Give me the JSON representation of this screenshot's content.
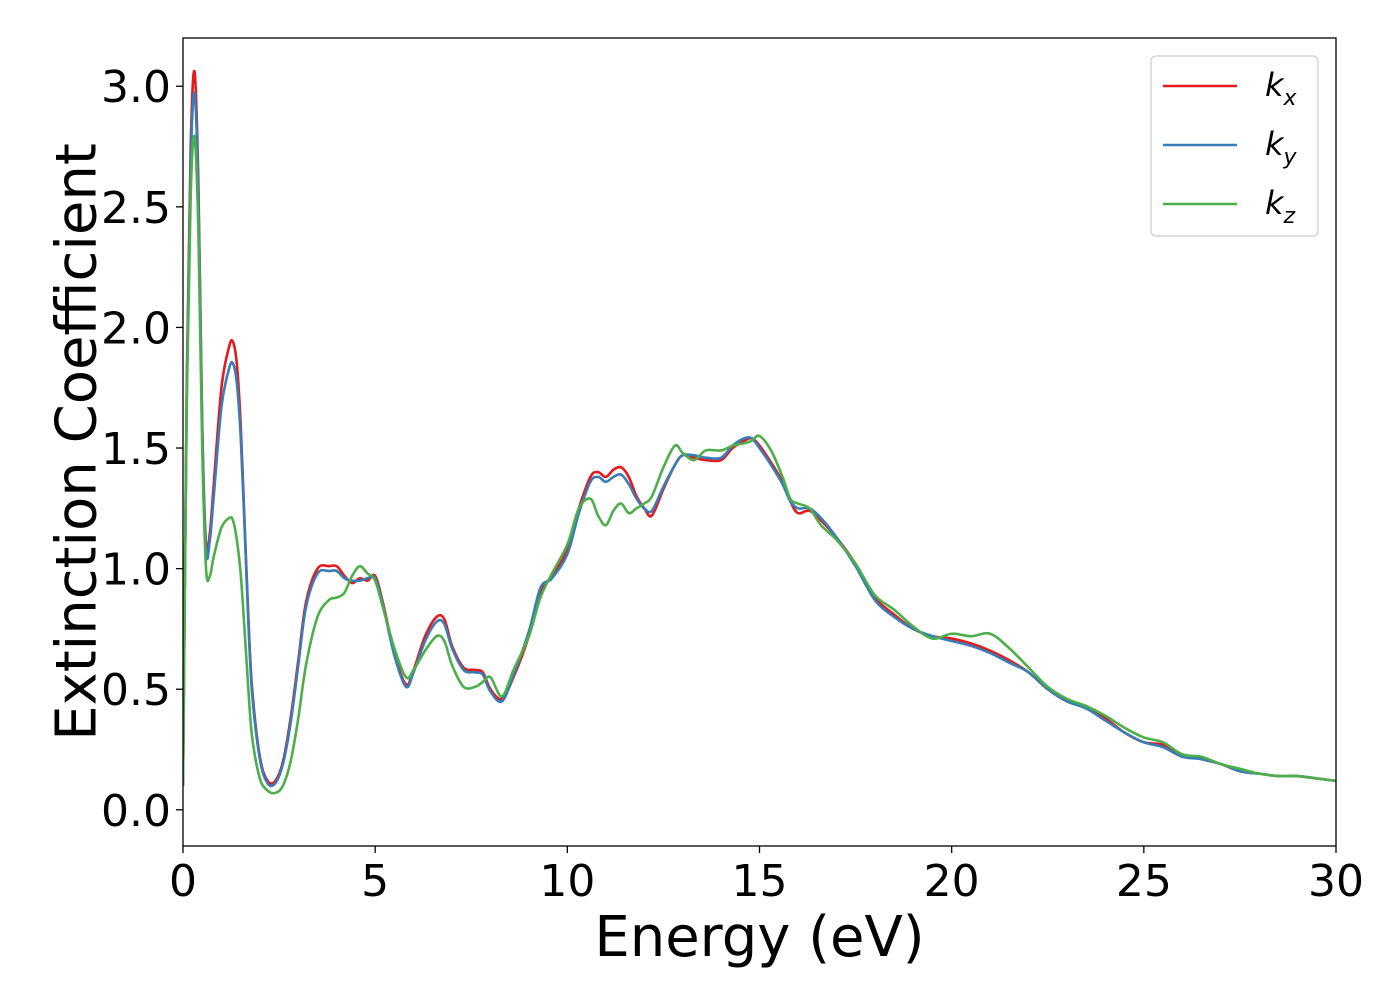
{
  "chart_data": {
    "type": "line",
    "title": "",
    "xlabel": "Energy (eV)",
    "ylabel": "Extinction Coefficient",
    "xlim": [
      0,
      30
    ],
    "ylim": [
      -0.15,
      3.2
    ],
    "xticks": [
      0,
      5,
      10,
      15,
      20,
      25,
      30
    ],
    "xtick_labels": [
      "0",
      "5",
      "10",
      "15",
      "20",
      "25",
      "30"
    ],
    "yticks": [
      0.0,
      0.5,
      1.0,
      1.5,
      2.0,
      2.5,
      3.0
    ],
    "ytick_labels": [
      "0.0",
      "0.5",
      "1.0",
      "1.5",
      "2.0",
      "2.5",
      "3.0"
    ],
    "grid": false,
    "legend_position": "top-right",
    "series": [
      {
        "name": "kx",
        "name_base": "k",
        "name_sub": "x",
        "color": "#e41a1c",
        "x": [
          0,
          0.1,
          0.2,
          0.3,
          0.4,
          0.5,
          0.6,
          0.7,
          0.8,
          1.0,
          1.2,
          1.3,
          1.4,
          1.5,
          1.6,
          1.7,
          1.8,
          2.0,
          2.2,
          2.4,
          2.6,
          2.8,
          3.0,
          3.2,
          3.5,
          3.8,
          4.0,
          4.2,
          4.4,
          4.6,
          4.8,
          5.0,
          5.2,
          5.5,
          5.8,
          6.0,
          6.3,
          6.6,
          6.8,
          7.0,
          7.3,
          7.6,
          7.8,
          8.0,
          8.3,
          8.6,
          9.0,
          9.3,
          9.6,
          10.0,
          10.3,
          10.6,
          10.8,
          11.0,
          11.2,
          11.4,
          11.6,
          11.8,
          12.0,
          12.2,
          12.5,
          12.8,
          13.0,
          13.3,
          13.6,
          14.0,
          14.3,
          14.6,
          14.8,
          15.0,
          15.3,
          15.6,
          15.8,
          16.0,
          16.3,
          16.6,
          17.0,
          17.5,
          18.0,
          18.5,
          19.0,
          19.5,
          20.0,
          20.5,
          21.0,
          21.5,
          22.0,
          22.5,
          23.0,
          23.5,
          24.0,
          24.5,
          25.0,
          25.5,
          26.0,
          26.5,
          27.0,
          27.5,
          28.0,
          28.5,
          29.0,
          29.5,
          30.0
        ],
        "y": [
          0.1,
          1.8,
          2.75,
          3.06,
          2.6,
          1.6,
          1.1,
          1.15,
          1.35,
          1.75,
          1.92,
          1.94,
          1.85,
          1.6,
          1.2,
          0.8,
          0.5,
          0.22,
          0.12,
          0.12,
          0.2,
          0.38,
          0.62,
          0.86,
          1.0,
          1.01,
          1.01,
          0.97,
          0.94,
          0.96,
          0.95,
          0.97,
          0.86,
          0.65,
          0.52,
          0.58,
          0.72,
          0.8,
          0.79,
          0.68,
          0.59,
          0.58,
          0.57,
          0.5,
          0.46,
          0.55,
          0.72,
          0.9,
          0.97,
          1.08,
          1.25,
          1.38,
          1.4,
          1.38,
          1.41,
          1.42,
          1.38,
          1.3,
          1.25,
          1.22,
          1.33,
          1.43,
          1.47,
          1.46,
          1.45,
          1.45,
          1.5,
          1.53,
          1.54,
          1.51,
          1.44,
          1.36,
          1.28,
          1.23,
          1.24,
          1.2,
          1.13,
          1.02,
          0.88,
          0.81,
          0.75,
          0.72,
          0.71,
          0.69,
          0.66,
          0.62,
          0.57,
          0.5,
          0.45,
          0.43,
          0.38,
          0.32,
          0.28,
          0.27,
          0.23,
          0.21,
          0.19,
          0.16,
          0.15,
          0.14,
          0.14,
          0.13,
          0.12
        ]
      },
      {
        "name": "ky",
        "name_base": "k",
        "name_sub": "y",
        "color": "#377eb8",
        "x": [
          0,
          0.1,
          0.2,
          0.3,
          0.4,
          0.5,
          0.6,
          0.7,
          0.8,
          1.0,
          1.2,
          1.3,
          1.4,
          1.5,
          1.6,
          1.7,
          1.8,
          2.0,
          2.2,
          2.4,
          2.6,
          2.8,
          3.0,
          3.2,
          3.5,
          3.8,
          4.0,
          4.2,
          4.4,
          4.6,
          4.8,
          5.0,
          5.2,
          5.5,
          5.8,
          6.0,
          6.3,
          6.6,
          6.8,
          7.0,
          7.3,
          7.6,
          7.8,
          8.0,
          8.3,
          8.6,
          9.0,
          9.3,
          9.6,
          10.0,
          10.3,
          10.6,
          10.8,
          11.0,
          11.2,
          11.4,
          11.6,
          11.8,
          12.0,
          12.2,
          12.5,
          12.8,
          13.0,
          13.3,
          13.6,
          14.0,
          14.3,
          14.6,
          14.8,
          15.0,
          15.3,
          15.6,
          15.8,
          16.0,
          16.3,
          16.6,
          17.0,
          17.5,
          18.0,
          18.5,
          19.0,
          19.5,
          20.0,
          20.5,
          21.0,
          21.5,
          22.0,
          22.5,
          23.0,
          23.5,
          24.0,
          24.5,
          25.0,
          25.5,
          26.0,
          26.5,
          27.0,
          27.5,
          28.0,
          28.5,
          29.0,
          29.5,
          30.0
        ],
        "y": [
          0.1,
          1.75,
          2.68,
          2.97,
          2.55,
          1.58,
          1.07,
          1.12,
          1.3,
          1.67,
          1.83,
          1.85,
          1.77,
          1.55,
          1.18,
          0.78,
          0.48,
          0.21,
          0.11,
          0.11,
          0.19,
          0.36,
          0.6,
          0.84,
          0.98,
          0.99,
          0.99,
          0.96,
          0.95,
          0.95,
          0.96,
          0.96,
          0.85,
          0.64,
          0.51,
          0.57,
          0.7,
          0.78,
          0.77,
          0.67,
          0.58,
          0.57,
          0.56,
          0.49,
          0.45,
          0.56,
          0.74,
          0.92,
          0.96,
          1.06,
          1.23,
          1.36,
          1.38,
          1.36,
          1.38,
          1.39,
          1.35,
          1.29,
          1.25,
          1.24,
          1.34,
          1.43,
          1.47,
          1.47,
          1.46,
          1.46,
          1.51,
          1.54,
          1.54,
          1.5,
          1.43,
          1.35,
          1.28,
          1.25,
          1.25,
          1.21,
          1.13,
          1.01,
          0.87,
          0.8,
          0.75,
          0.72,
          0.7,
          0.68,
          0.65,
          0.61,
          0.57,
          0.5,
          0.45,
          0.42,
          0.37,
          0.32,
          0.28,
          0.26,
          0.22,
          0.21,
          0.19,
          0.16,
          0.15,
          0.14,
          0.14,
          0.13,
          0.12
        ]
      },
      {
        "name": "kz",
        "name_base": "k",
        "name_sub": "z",
        "color": "#4daf4a",
        "x": [
          0,
          0.1,
          0.2,
          0.3,
          0.4,
          0.5,
          0.6,
          0.7,
          0.8,
          1.0,
          1.2,
          1.3,
          1.4,
          1.5,
          1.6,
          1.7,
          1.8,
          2.0,
          2.2,
          2.4,
          2.6,
          2.8,
          3.0,
          3.2,
          3.5,
          3.8,
          4.0,
          4.2,
          4.4,
          4.6,
          4.8,
          5.0,
          5.2,
          5.5,
          5.8,
          6.0,
          6.3,
          6.6,
          6.8,
          7.0,
          7.3,
          7.6,
          7.8,
          8.0,
          8.3,
          8.6,
          9.0,
          9.3,
          9.6,
          10.0,
          10.3,
          10.6,
          10.8,
          11.0,
          11.2,
          11.4,
          11.6,
          11.8,
          12.0,
          12.2,
          12.5,
          12.8,
          13.0,
          13.3,
          13.6,
          14.0,
          14.3,
          14.6,
          14.8,
          15.0,
          15.3,
          15.6,
          15.8,
          16.0,
          16.3,
          16.6,
          17.0,
          17.5,
          18.0,
          18.5,
          19.0,
          19.5,
          20.0,
          20.5,
          21.0,
          21.5,
          22.0,
          22.5,
          23.0,
          23.5,
          24.0,
          24.5,
          25.0,
          25.5,
          26.0,
          26.5,
          27.0,
          27.5,
          28.0,
          28.5,
          29.0,
          29.5,
          30.0
        ],
        "y": [
          0.1,
          1.7,
          2.55,
          2.79,
          2.4,
          1.5,
          1.0,
          0.97,
          1.05,
          1.17,
          1.21,
          1.2,
          1.12,
          0.98,
          0.75,
          0.5,
          0.3,
          0.13,
          0.08,
          0.07,
          0.1,
          0.2,
          0.38,
          0.6,
          0.8,
          0.87,
          0.88,
          0.9,
          0.97,
          1.01,
          0.98,
          0.95,
          0.84,
          0.67,
          0.55,
          0.58,
          0.66,
          0.72,
          0.7,
          0.6,
          0.51,
          0.51,
          0.53,
          0.55,
          0.47,
          0.58,
          0.72,
          0.88,
          0.98,
          1.1,
          1.25,
          1.29,
          1.22,
          1.18,
          1.24,
          1.27,
          1.23,
          1.25,
          1.27,
          1.3,
          1.42,
          1.51,
          1.48,
          1.45,
          1.49,
          1.49,
          1.51,
          1.52,
          1.53,
          1.55,
          1.49,
          1.38,
          1.29,
          1.27,
          1.25,
          1.18,
          1.12,
          1.02,
          0.89,
          0.83,
          0.76,
          0.71,
          0.73,
          0.72,
          0.73,
          0.67,
          0.59,
          0.51,
          0.46,
          0.43,
          0.39,
          0.34,
          0.3,
          0.28,
          0.23,
          0.22,
          0.19,
          0.17,
          0.15,
          0.14,
          0.14,
          0.13,
          0.12
        ]
      }
    ]
  }
}
